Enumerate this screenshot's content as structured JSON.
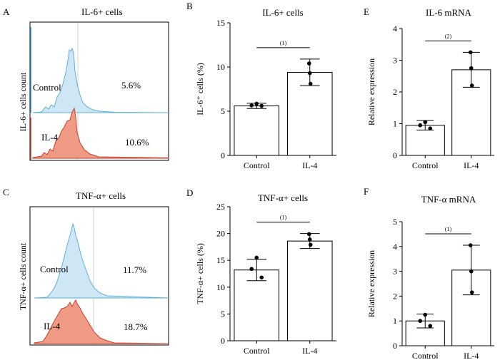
{
  "panels": {
    "A": {
      "letter": "A",
      "title": "IL-6+ cells",
      "ylabel": "IL-6+ cells count",
      "top_label": "Control",
      "top_pct": "5.6%",
      "bottom_label": "IL-4",
      "bottom_pct": "10.6%"
    },
    "C": {
      "letter": "C",
      "title": "TNF-α+ cells",
      "ylabel": "TNF-α+ cells count",
      "top_label": "Control",
      "top_pct": "11.7%",
      "bottom_label": "IL-4",
      "bottom_pct": "18.7%"
    },
    "B": {
      "letter": "B"
    },
    "D": {
      "letter": "D"
    },
    "E": {
      "letter": "E"
    },
    "F": {
      "letter": "F"
    }
  },
  "colors": {
    "control_fill": "#cfe6f4",
    "control_line": "#5bb1dd",
    "il4_fill": "#ee9a84",
    "il4_line": "#c9402e"
  },
  "chart_data": [
    {
      "id": "B",
      "type": "bar",
      "title": "IL-6+ cells",
      "ylabel": "IL-6⁺ cells (%)",
      "xlabel": "",
      "categories": [
        "Control",
        "IL-4"
      ],
      "values": [
        5.6,
        9.4
      ],
      "error": [
        0.3,
        1.5
      ],
      "points": [
        [
          5.85,
          5.65,
          5.6
        ],
        [
          10.4,
          9.3,
          8.1
        ]
      ],
      "ylim": [
        0,
        15
      ],
      "yticks": [
        0,
        5,
        10,
        15
      ],
      "annotation": "(1)"
    },
    {
      "id": "D",
      "type": "bar",
      "title": "TNF-α+ cells",
      "ylabel": "TNF-α+ cells (%)",
      "xlabel": "",
      "categories": [
        "Control",
        "IL-4"
      ],
      "values": [
        13.2,
        18.6
      ],
      "error": [
        2.0,
        1.4
      ],
      "points": [
        [
          15.5,
          13.4,
          11.8
        ],
        [
          19.9,
          18.9,
          17.9
        ]
      ],
      "ylim": [
        0,
        25
      ],
      "yticks": [
        0,
        5,
        10,
        15,
        20,
        25
      ],
      "annotation": "(1)"
    },
    {
      "id": "E",
      "type": "bar",
      "title": "IL-6 mRNA",
      "ylabel": "Relative expression",
      "xlabel": "",
      "categories": [
        "Control",
        "IL-4"
      ],
      "values": [
        0.95,
        2.7
      ],
      "error": [
        0.15,
        0.55
      ],
      "points": [
        [
          1.05,
          0.95,
          0.85
        ],
        [
          3.25,
          2.75,
          2.2
        ]
      ],
      "ylim": [
        0,
        4
      ],
      "yticks": [
        0,
        1,
        2,
        3,
        4
      ],
      "annotation": "(2)"
    },
    {
      "id": "F",
      "type": "bar",
      "title": "TNF-α mRNA",
      "ylabel": "Relative expression",
      "xlabel": "",
      "categories": [
        "Control",
        "IL-4"
      ],
      "values": [
        1.0,
        3.05
      ],
      "error": [
        0.28,
        1.0
      ],
      "points": [
        [
          1.25,
          1.0,
          0.8
        ],
        [
          4.05,
          3.0,
          2.15
        ]
      ],
      "ylim": [
        0,
        5
      ],
      "yticks": [
        0,
        1,
        2,
        3,
        4,
        5
      ],
      "annotation": "(1)"
    }
  ]
}
